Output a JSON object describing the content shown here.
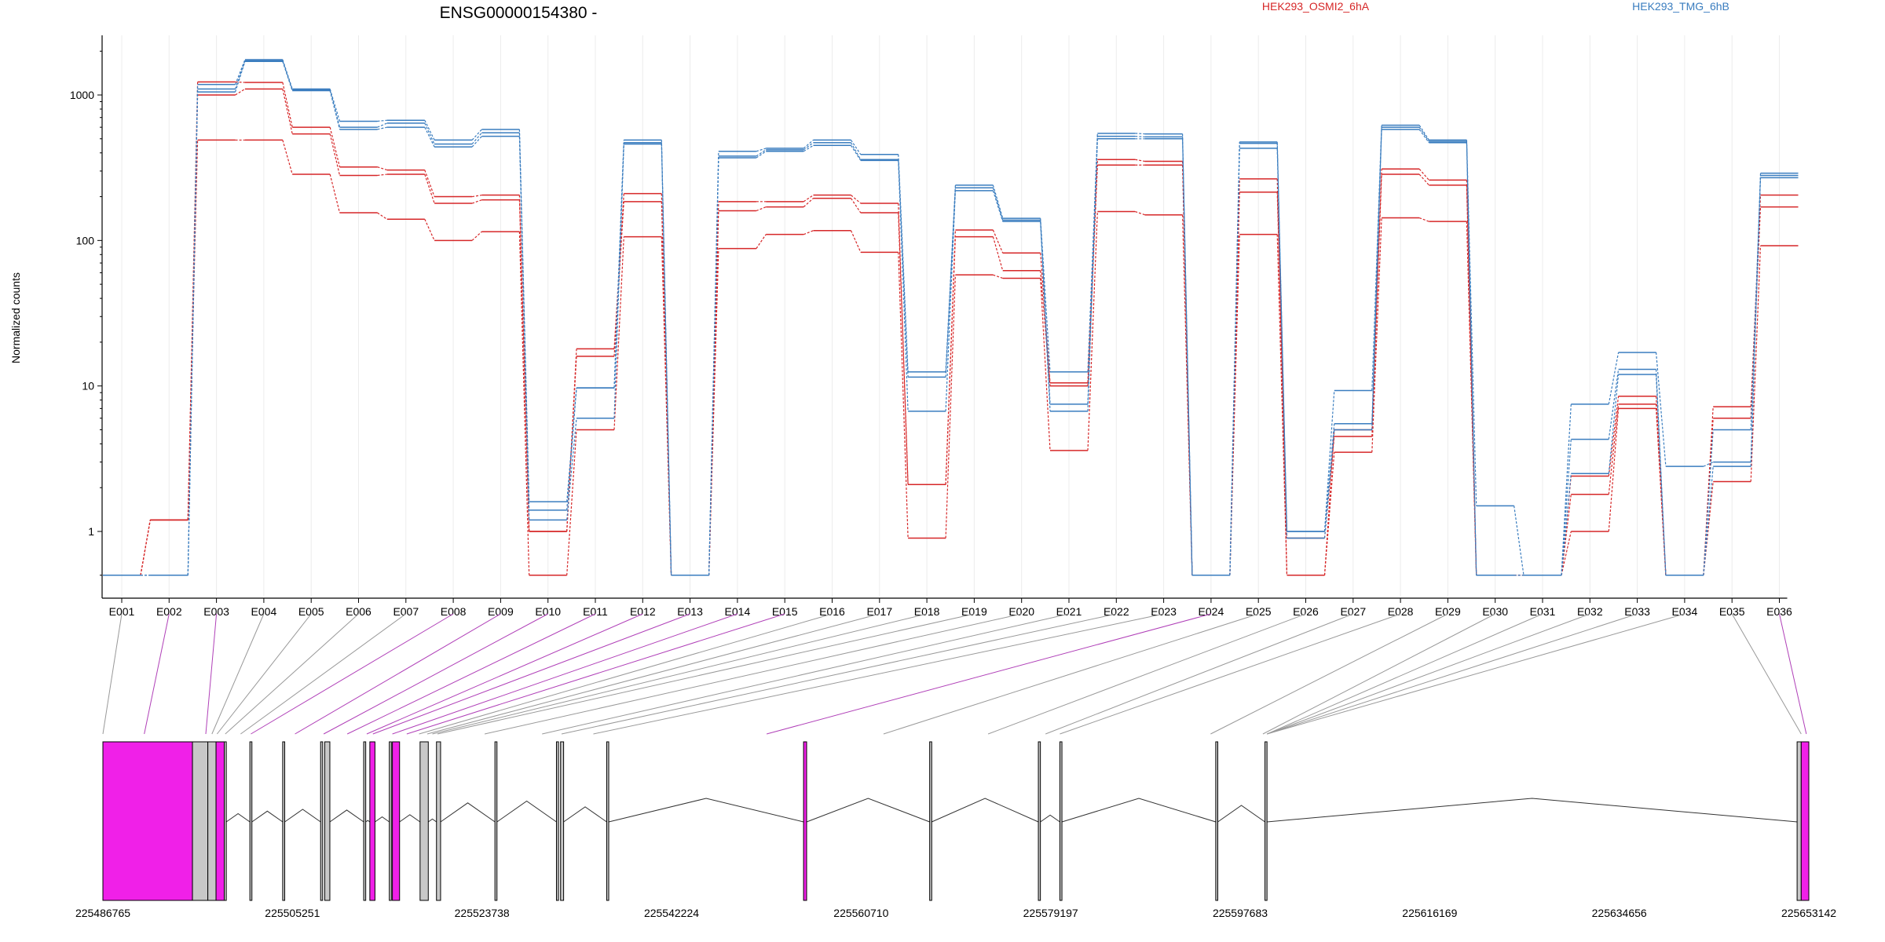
{
  "chart_data": {
    "type": "line",
    "title": "ENSG00000154380 -",
    "xlabel": "",
    "ylabel": "Normalized counts",
    "yscale": "log",
    "y_ticks": [
      "1",
      "10",
      "100",
      "1000"
    ],
    "y_floor": 0.5,
    "grid": "vertical-light",
    "legend": "top-right",
    "categories": [
      "E001",
      "E002",
      "E003",
      "E004",
      "E005",
      "E006",
      "E007",
      "E008",
      "E009",
      "E010",
      "E011",
      "E012",
      "E013",
      "E014",
      "E015",
      "E016",
      "E017",
      "E018",
      "E019",
      "E020",
      "E021",
      "E022",
      "E023",
      "E024",
      "E025",
      "E026",
      "E027",
      "E028",
      "E029",
      "E030",
      "E031",
      "E032",
      "E033",
      "E034",
      "E035",
      "E036"
    ],
    "groups": [
      {
        "name": "HEK293_OSMI2_6hA",
        "color": "#d62728"
      },
      {
        "name": "HEK293_TMG_6hB",
        "color": "#3a7dbf"
      }
    ],
    "series": [
      {
        "group": 0,
        "values": [
          0.5,
          1.2,
          1230,
          1220,
          600,
          320,
          305,
          200,
          205,
          1.0,
          18,
          210,
          0.5,
          185,
          185,
          205,
          180,
          2.1,
          118,
          82,
          10.5,
          360,
          350,
          0.5,
          265,
          0.5,
          5.0,
          310,
          260,
          0.5,
          0.5,
          2.4,
          8.5,
          0.5,
          7.2,
          205
        ]
      },
      {
        "group": 0,
        "values": [
          0.5,
          1.2,
          1000,
          1100,
          540,
          280,
          285,
          180,
          190,
          1.0,
          16,
          185,
          0.5,
          160,
          170,
          195,
          155,
          2.1,
          106,
          62,
          10.0,
          330,
          330,
          0.5,
          215,
          0.9,
          4.5,
          285,
          240,
          0.5,
          0.5,
          1.8,
          7.5,
          0.5,
          6.0,
          170
        ]
      },
      {
        "group": 0,
        "values": [
          0.5,
          1.2,
          490,
          490,
          285,
          155,
          140,
          100,
          115,
          0.5,
          5.0,
          106,
          0.5,
          88,
          110,
          117,
          83,
          0.9,
          58,
          55,
          3.6,
          158,
          150,
          0.5,
          110,
          0.5,
          3.5,
          143,
          135,
          0.5,
          0.5,
          1.0,
          7.0,
          0.5,
          2.2,
          92
        ]
      },
      {
        "group": 1,
        "values": [
          0.5,
          0.5,
          1180,
          1750,
          1100,
          660,
          670,
          490,
          580,
          1.6,
          9.7,
          490,
          0.5,
          410,
          430,
          490,
          390,
          12.5,
          240,
          142,
          12.5,
          545,
          540,
          0.5,
          475,
          1.0,
          9.3,
          620,
          490,
          1.5,
          0.5,
          7.5,
          17,
          2.8,
          3.0,
          290
        ]
      },
      {
        "group": 1,
        "values": [
          0.5,
          0.5,
          1100,
          1720,
          1080,
          600,
          640,
          460,
          550,
          1.4,
          9.7,
          470,
          0.5,
          380,
          420,
          470,
          360,
          11.5,
          230,
          138,
          7.5,
          520,
          515,
          0.5,
          465,
          1.0,
          5.5,
          600,
          480,
          0.5,
          0.5,
          4.3,
          13,
          0.5,
          2.8,
          280
        ]
      },
      {
        "group": 1,
        "values": [
          0.5,
          0.5,
          1050,
          1700,
          1070,
          580,
          600,
          440,
          520,
          1.2,
          6.0,
          460,
          0.5,
          370,
          410,
          450,
          355,
          6.7,
          220,
          135,
          6.7,
          500,
          500,
          0.5,
          430,
          0.9,
          5.0,
          580,
          470,
          0.5,
          0.5,
          2.5,
          12,
          0.5,
          5.0,
          270
        ]
      }
    ],
    "genome": {
      "ticks": [
        "225486765",
        "225505251",
        "225523738",
        "225542224",
        "225560710",
        "225579197",
        "225597683",
        "225616169",
        "225634656",
        "225653142"
      ],
      "start": 225486765,
      "end": 225653142,
      "highlight_color": "#f020e8",
      "plain_color": "#c8c8c8",
      "exons": [
        {
          "s": 225486765,
          "e": 225495500,
          "hl": true
        },
        {
          "s": 225495500,
          "e": 225497000,
          "hl": false
        },
        {
          "s": 225497000,
          "e": 225497800,
          "hl": false
        },
        {
          "s": 225497800,
          "e": 225498600,
          "hl": true
        },
        {
          "s": 225498600,
          "e": 225498800,
          "hl": false
        },
        {
          "s": 225501100,
          "e": 225501300,
          "hl": false
        },
        {
          "s": 225504300,
          "e": 225504500,
          "hl": false
        },
        {
          "s": 225508000,
          "e": 225508200,
          "hl": false
        },
        {
          "s": 225508400,
          "e": 225508900,
          "hl": false
        },
        {
          "s": 225512200,
          "e": 225512400,
          "hl": false
        },
        {
          "s": 225512800,
          "e": 225513300,
          "hl": true
        },
        {
          "s": 225514700,
          "e": 225514900,
          "hl": false
        },
        {
          "s": 225515000,
          "e": 225515700,
          "hl": true
        },
        {
          "s": 225517700,
          "e": 225518500,
          "hl": false
        },
        {
          "s": 225519300,
          "e": 225519700,
          "hl": false
        },
        {
          "s": 225525000,
          "e": 225525200,
          "hl": false
        },
        {
          "s": 225531000,
          "e": 225531200,
          "hl": false
        },
        {
          "s": 225531400,
          "e": 225531700,
          "hl": false
        },
        {
          "s": 225535900,
          "e": 225536100,
          "hl": false
        },
        {
          "s": 225555100,
          "e": 225555400,
          "hl": true
        },
        {
          "s": 225567400,
          "e": 225567600,
          "hl": false
        },
        {
          "s": 225578000,
          "e": 225578200,
          "hl": false
        },
        {
          "s": 225580100,
          "e": 225580300,
          "hl": false
        },
        {
          "s": 225595300,
          "e": 225595500,
          "hl": false
        },
        {
          "s": 225600100,
          "e": 225600300,
          "hl": false
        },
        {
          "s": 225652000,
          "e": 225652400,
          "hl": false
        },
        {
          "s": 225652400,
          "e": 225653142,
          "hl": true
        }
      ],
      "links": [
        {
          "pos": 225486765,
          "hl": false
        },
        {
          "pos": 225490800,
          "hl": true
        },
        {
          "pos": 225496800,
          "hl": true
        },
        {
          "pos": 225497400,
          "hl": false
        },
        {
          "pos": 225497900,
          "hl": false
        },
        {
          "pos": 225498700,
          "hl": false
        },
        {
          "pos": 225500200,
          "hl": false
        },
        {
          "pos": 225501200,
          "hl": true
        },
        {
          "pos": 225505500,
          "hl": true
        },
        {
          "pos": 225508300,
          "hl": true
        },
        {
          "pos": 225510600,
          "hl": true
        },
        {
          "pos": 225512500,
          "hl": true
        },
        {
          "pos": 225513100,
          "hl": true
        },
        {
          "pos": 225515000,
          "hl": true
        },
        {
          "pos": 225516400,
          "hl": true
        },
        {
          "pos": 225517600,
          "hl": false
        },
        {
          "pos": 225518400,
          "hl": false
        },
        {
          "pos": 225518900,
          "hl": false
        },
        {
          "pos": 225519400,
          "hl": false
        },
        {
          "pos": 225524000,
          "hl": false
        },
        {
          "pos": 225529600,
          "hl": false
        },
        {
          "pos": 225531500,
          "hl": false
        },
        {
          "pos": 225534600,
          "hl": false
        },
        {
          "pos": 225551500,
          "hl": true
        },
        {
          "pos": 225562900,
          "hl": false
        },
        {
          "pos": 225573100,
          "hl": false
        },
        {
          "pos": 225578700,
          "hl": false
        },
        {
          "pos": 225580100,
          "hl": false
        },
        {
          "pos": 225594800,
          "hl": false
        },
        {
          "pos": 225599900,
          "hl": false
        },
        {
          "pos": 225600300,
          "hl": false
        },
        {
          "pos": 225600300,
          "hl": false
        },
        {
          "pos": 225600300,
          "hl": false
        },
        {
          "pos": 225600300,
          "hl": false
        },
        {
          "pos": 225652400,
          "hl": false
        },
        {
          "pos": 225652900,
          "hl": true
        }
      ]
    }
  }
}
